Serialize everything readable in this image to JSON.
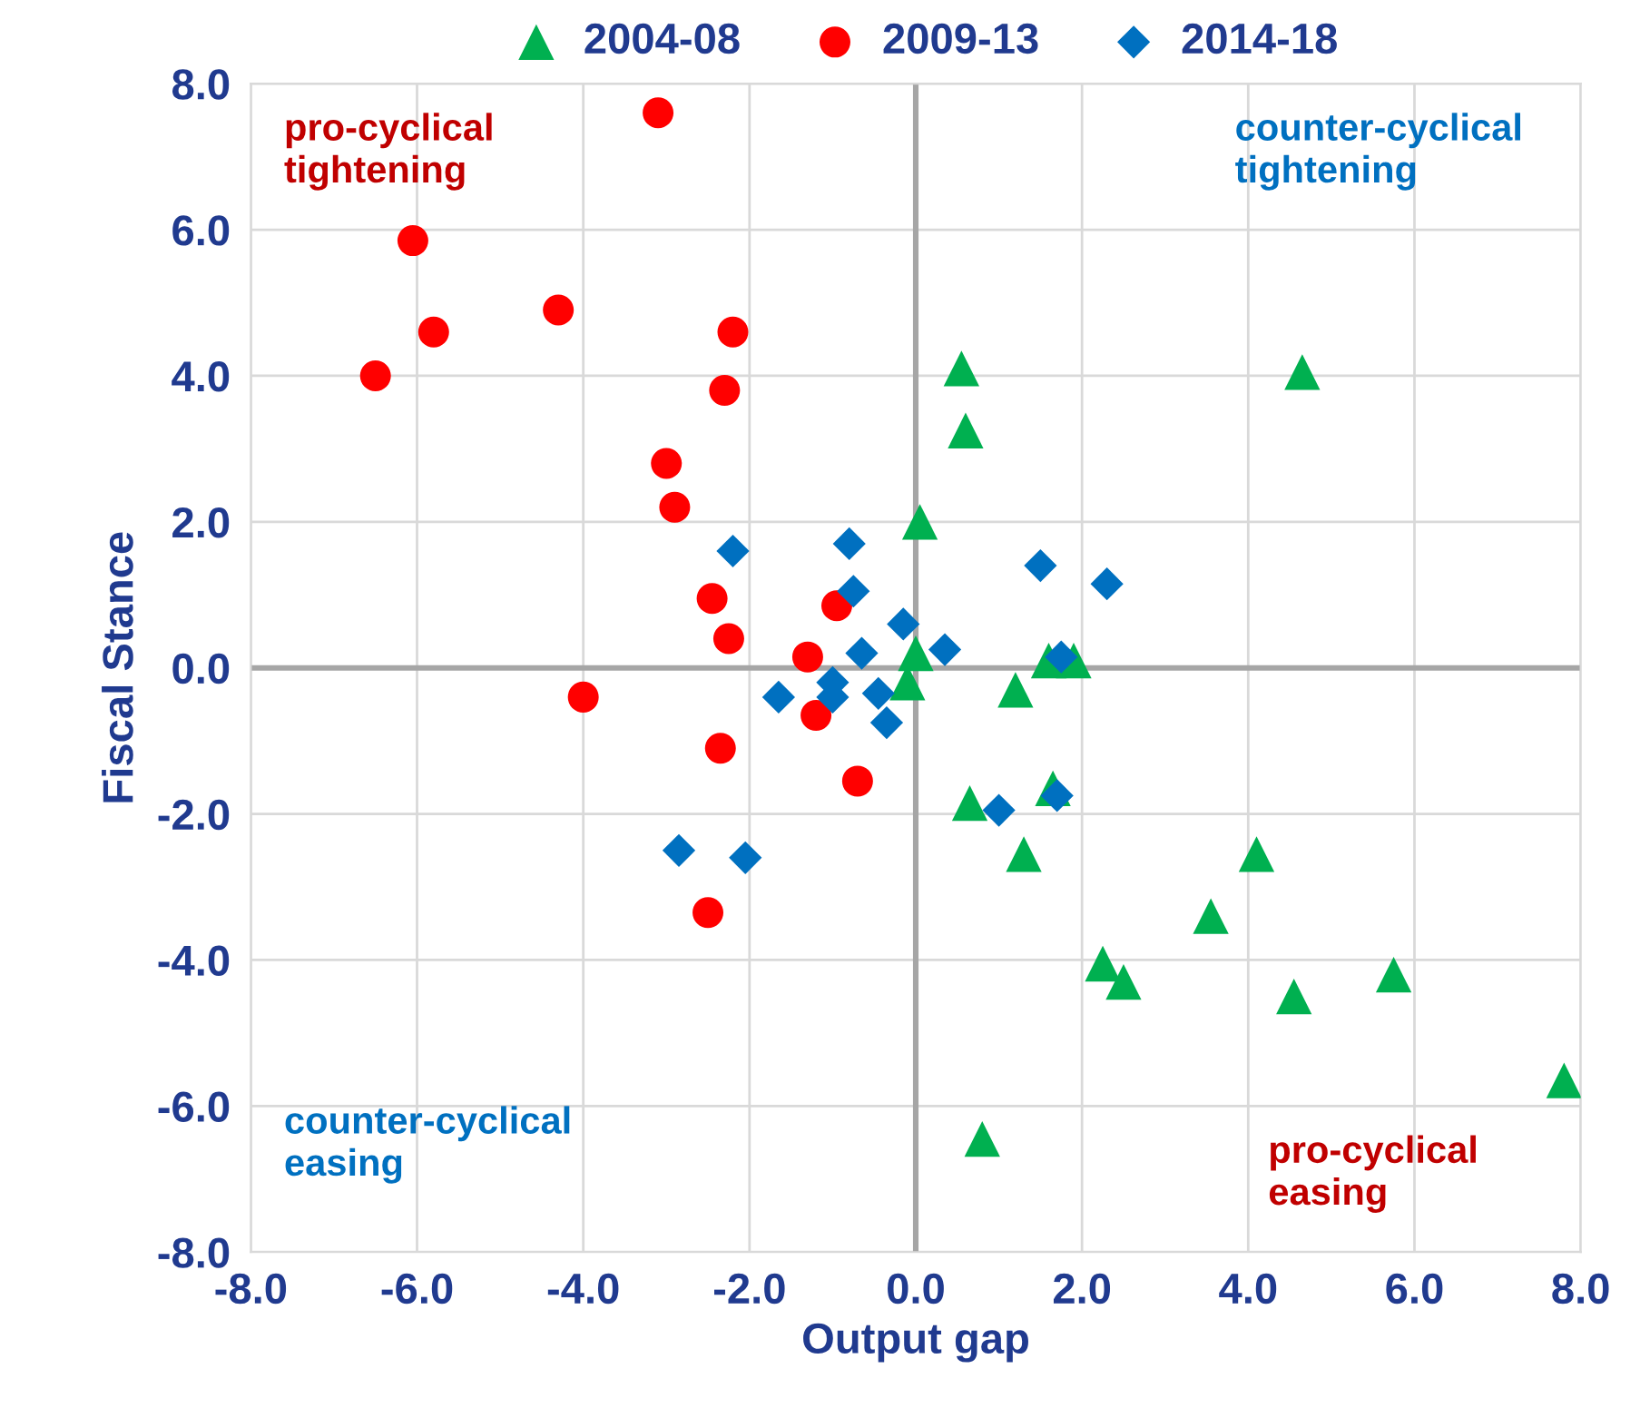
{
  "chart_data": {
    "type": "scatter",
    "xlabel": "Output gap",
    "ylabel": "Fiscal Stance",
    "xlim": [
      -8,
      8
    ],
    "ylim": [
      -8,
      8
    ],
    "xticks": [
      {
        "value": -8,
        "label": "-8.0"
      },
      {
        "value": -6,
        "label": "-6.0"
      },
      {
        "value": -4,
        "label": "-4.0"
      },
      {
        "value": -2,
        "label": "-2.0"
      },
      {
        "value": 0,
        "label": "0.0"
      },
      {
        "value": 2,
        "label": "2.0"
      },
      {
        "value": 4,
        "label": "4.0"
      },
      {
        "value": 6,
        "label": "6.0"
      },
      {
        "value": 8,
        "label": "8.0"
      }
    ],
    "yticks": [
      {
        "value": -8,
        "label": "-8.0"
      },
      {
        "value": -6,
        "label": "-6.0"
      },
      {
        "value": -4,
        "label": "-4.0"
      },
      {
        "value": -2,
        "label": "-2.0"
      },
      {
        "value": 0,
        "label": "0.0"
      },
      {
        "value": 2,
        "label": "2.0"
      },
      {
        "value": 4,
        "label": "4.0"
      },
      {
        "value": 6,
        "label": "6.0"
      },
      {
        "value": 8,
        "label": "8.0"
      }
    ],
    "grid": true,
    "legend": "top",
    "annotations": [
      "pro-cyclical\ntightening",
      "counter-cyclical\ntightening",
      "counter-cyclical\neasing",
      "pro-cyclical\neasing"
    ],
    "series": [
      {
        "name": "2004-08",
        "color": "#00b050",
        "marker": "triangle",
        "x": [
          0.55,
          0.6,
          4.65,
          0.05,
          0.0,
          -0.1,
          1.6,
          1.9,
          1.2,
          0.65,
          1.65,
          1.3,
          4.1,
          3.55,
          2.25,
          2.5,
          4.55,
          5.75,
          7.8,
          0.8
        ],
        "values": [
          4.1,
          3.25,
          4.05,
          2.0,
          0.2,
          -0.2,
          0.1,
          0.1,
          -0.3,
          -1.85,
          -1.65,
          -2.55,
          -2.55,
          -3.4,
          -4.05,
          -4.3,
          -4.5,
          -4.2,
          -5.65,
          -6.45
        ]
      },
      {
        "name": "2009-13",
        "color": "#ff0000",
        "marker": "circle",
        "x": [
          -3.1,
          -6.05,
          -5.8,
          -4.3,
          -2.2,
          -2.3,
          -3.0,
          -2.9,
          -6.5,
          -2.45,
          -2.25,
          -0.95,
          -1.3,
          -1.2,
          -4.0,
          -2.35,
          -0.7,
          -2.5
        ],
        "values": [
          7.6,
          5.85,
          4.6,
          4.9,
          4.6,
          3.8,
          2.8,
          2.2,
          4.0,
          0.95,
          0.4,
          0.85,
          0.15,
          -0.65,
          -0.4,
          -1.1,
          -1.55,
          -3.35
        ]
      },
      {
        "name": "2014-18",
        "color": "#0070c0",
        "marker": "diamond",
        "x": [
          -2.2,
          -0.8,
          -0.75,
          -0.15,
          -0.65,
          0.35,
          1.5,
          2.3,
          1.75,
          -1.65,
          -1.0,
          -1.0,
          -0.45,
          -0.35,
          -2.85,
          -2.05,
          1.0,
          1.7
        ],
        "values": [
          1.6,
          1.7,
          1.05,
          0.6,
          0.2,
          0.25,
          1.4,
          1.15,
          0.15,
          -0.4,
          -0.2,
          -0.4,
          -0.35,
          -0.75,
          -2.5,
          -2.6,
          -1.95,
          -1.75
        ]
      }
    ]
  }
}
